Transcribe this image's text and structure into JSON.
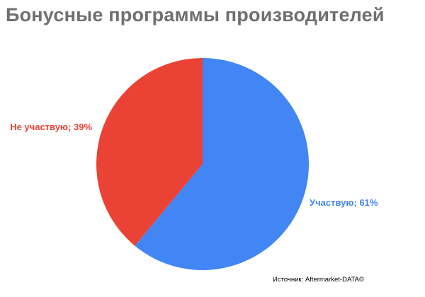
{
  "chart_data": {
    "type": "pie",
    "title": "Бонусные программы производителей",
    "slices": [
      {
        "label": "Участвую; 61%",
        "value": 61,
        "color": "#4285f4"
      },
      {
        "label": "Не участвую; 39%",
        "value": 39,
        "color": "#ea4335"
      }
    ],
    "source": "Источник: Aftermarket-DATA©"
  }
}
